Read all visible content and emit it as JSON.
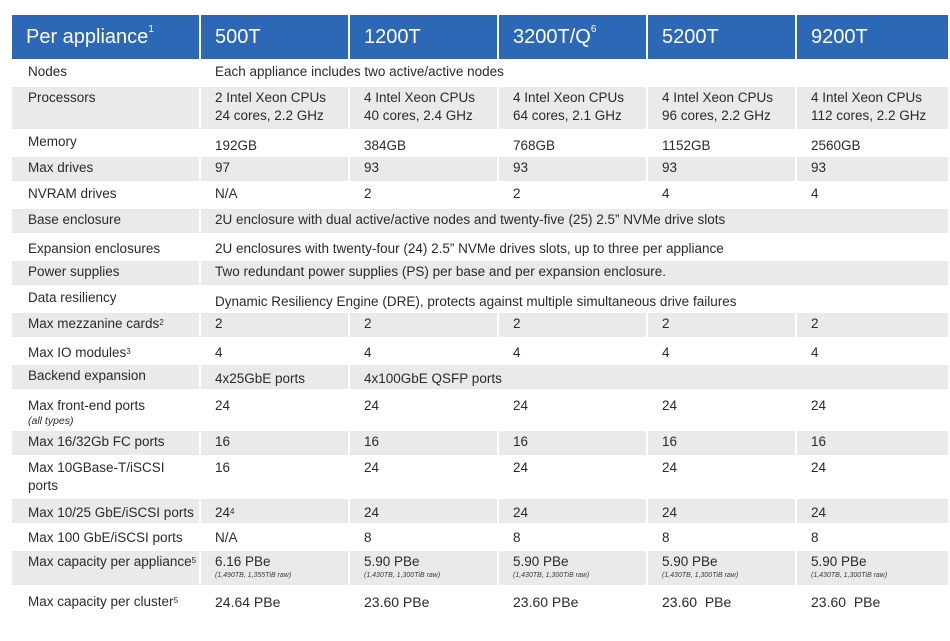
{
  "header": {
    "label": "Per appliance",
    "label_sup": "1",
    "models": [
      {
        "name": "500T",
        "sup": ""
      },
      {
        "name": "1200T",
        "sup": ""
      },
      {
        "name": "3200T/Q",
        "sup": "6"
      },
      {
        "name": "5200T",
        "sup": ""
      },
      {
        "name": "9200T",
        "sup": ""
      }
    ]
  },
  "colors": {
    "header_bg": "#2c68b5",
    "header_text": "#ffffff",
    "stripe": "#eaeaea"
  },
  "rows": {
    "nodes": {
      "label": "Nodes",
      "value": "Each appliance includes two active/active nodes"
    },
    "processors": {
      "label": "Processors",
      "values": [
        [
          "2 Intel Xeon CPUs",
          "24 cores, 2.2 GHz"
        ],
        [
          "4 Intel Xeon CPUs",
          "40 cores, 2.4 GHz"
        ],
        [
          "4 Intel Xeon CPUs",
          "64 cores, 2.1 GHz"
        ],
        [
          "4 Intel Xeon CPUs",
          "96 cores, 2.2 GHz"
        ],
        [
          "4 Intel Xeon CPUs",
          "112 cores, 2.2 GHz"
        ]
      ]
    },
    "memory": {
      "label": "Memory",
      "values": [
        "192GB",
        "384GB",
        "768GB",
        "1152GB",
        "2560GB"
      ]
    },
    "max_drives": {
      "label": "Max drives",
      "values": [
        "97",
        "93",
        "93",
        "93",
        "93"
      ]
    },
    "nvram": {
      "label": "NVRAM drives",
      "values": [
        "N/A",
        "2",
        "2",
        "4",
        "4"
      ]
    },
    "base_enclosure": {
      "label": "Base enclosure",
      "value": "2U enclosure with dual active/active nodes and twenty-five (25) 2.5” NVMe drive slots"
    },
    "expansion_enclosures": {
      "label": "Expansion enclosures",
      "value": "2U enclosures with twenty-four (24) 2.5” NVMe drives slots, up to three per appliance"
    },
    "power_supplies": {
      "label": "Power supplies",
      "value": "Two redundant power supplies (PS) per base and per expansion enclosure."
    },
    "data_resiliency": {
      "label": "Data resiliency",
      "value": "Dynamic Resiliency Engine (DRE), protects against multiple simultaneous drive failures"
    },
    "mezzanine": {
      "label": "Max mezzanine cards",
      "label_sup": "2",
      "values": [
        "2",
        "2",
        "2",
        "2",
        "2"
      ]
    },
    "io_modules": {
      "label": "Max IO modules",
      "label_sup": "3",
      "values": [
        "4",
        "4",
        "4",
        "4",
        "4"
      ]
    },
    "backend": {
      "label": "Backend expansion",
      "value_first": "4x25GbE ports",
      "value_rest": "4x100GbE QSFP ports"
    },
    "frontend": {
      "label": "Max front-end ports",
      "sublabel": "(all types)",
      "values": [
        "24",
        "24",
        "24",
        "24",
        "24"
      ]
    },
    "fc": {
      "label": "Max 16/32Gb FC ports",
      "values": [
        "16",
        "16",
        "16",
        "16",
        "16"
      ]
    },
    "tbase": {
      "label": "Max 10GBase-T/iSCSI ports",
      "values": [
        "16",
        "24",
        "24",
        "24",
        "24"
      ]
    },
    "gbe25": {
      "label": "Max 10/25 GbE/iSCSI ports",
      "first_value": "24",
      "first_sup": "4",
      "values": [
        "24",
        "24",
        "24",
        "24"
      ]
    },
    "gbe100": {
      "label": "Max 100 GbE/iSCSI ports",
      "values": [
        "N/A",
        "8",
        "8",
        "8",
        "8"
      ]
    },
    "cap_appliance": {
      "label": "Max capacity per appliance",
      "label_sup": "5",
      "values": [
        [
          "6.16 PBe",
          "(1,490TB, 1,355TiB raw)"
        ],
        [
          "5.90 PBe",
          "(1,430TB, 1,300TiB raw)"
        ],
        [
          "5.90 PBe",
          "(1,430TB, 1,300TiB raw)"
        ],
        [
          "5.90 PBe",
          "(1,430TB, 1,300TiB raw)"
        ],
        [
          "5.90 PBe",
          "(1,430TB, 1,300TiB raw)"
        ]
      ]
    },
    "cap_cluster": {
      "label": "Max capacity per cluster",
      "label_sup": "5",
      "values": [
        "24.64 PBe",
        "23.60 PBe",
        "23.60 PBe",
        "23.60  PBe",
        "23.60  PBe"
      ]
    }
  }
}
